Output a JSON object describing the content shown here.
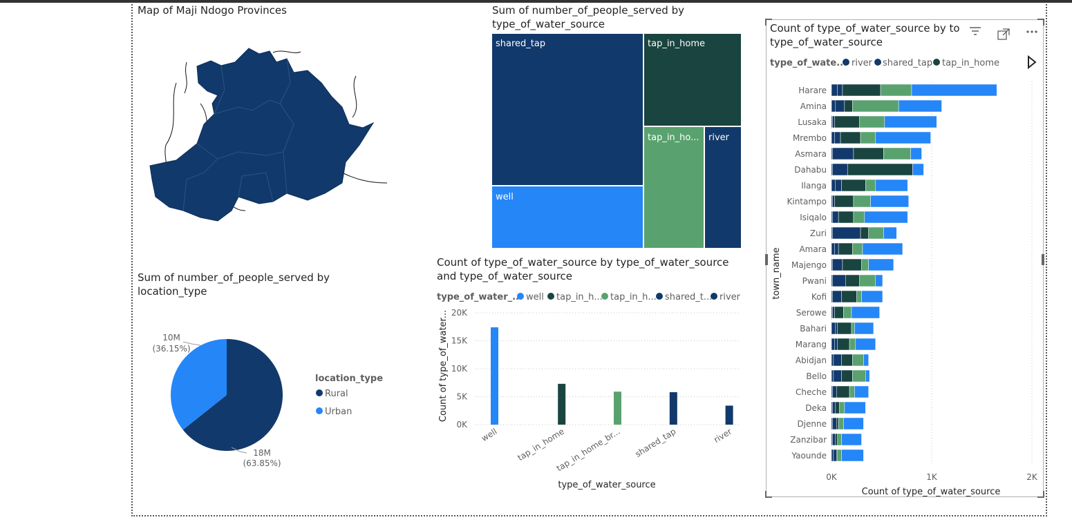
{
  "map": {
    "title": "Map of Maji Ndogo Provinces",
    "fill_color": "#12396b"
  },
  "treemap": {
    "title": "Sum of number_of_people_served by type_of_water_source",
    "tiles": [
      {
        "label": "shared_tap",
        "color": "#12396b"
      },
      {
        "label": "tap_in_home",
        "color": "#1a4440"
      },
      {
        "label": "tap_in_ho...",
        "color": "#59a26f"
      },
      {
        "label": "river",
        "color": "#12396b"
      },
      {
        "label": "well",
        "color": "#2586f7"
      }
    ]
  },
  "pie": {
    "title": "Sum of number_of_people_served by location_type",
    "legend_title": "location_type",
    "legend_items": [
      "Rural",
      "Urban"
    ],
    "labels": [
      {
        "value": "10M",
        "pct": "(36.15%)"
      },
      {
        "value": "18M",
        "pct": "(63.85%)"
      }
    ]
  },
  "column": {
    "title": "Count of type_of_water_source by type_of_water_source and type_of_water_source",
    "legend_title": "type_of_water_...",
    "legend_items": [
      "well",
      "tap_in_h...",
      "tap_in_h...",
      "shared_t...",
      "river"
    ],
    "y_axis_title": "Count of type_of_water...",
    "x_axis_title": "type_of_water_source",
    "y_ticks": [
      "20K",
      "15K",
      "10K",
      "5K",
      "0K"
    ],
    "x_tick_labels": [
      "well",
      "tap_in_home",
      "tap_in_home_br...",
      "shared_tap",
      "river"
    ]
  },
  "bar": {
    "title": "Count of type_of_water_source by to",
    "title_line2": "type_of_water_source",
    "legend_title": "type_of_wate...",
    "legend_items": [
      "river",
      "shared_tap",
      "tap_in_home"
    ],
    "y_axis_title": "town_name",
    "x_axis_title": "Count of type_of_water_source",
    "x_ticks": [
      "0K",
      "1K",
      "2K"
    ]
  },
  "colors": {
    "navy": "#12396b",
    "dark_green": "#1a4440",
    "green": "#59a26f",
    "blue": "#2586f7",
    "river": "#12396b"
  },
  "chart_data": [
    {
      "type": "treemap",
      "title": "Sum of number_of_people_served by type_of_water_source",
      "categories": [
        "shared_tap",
        "tap_in_home",
        "well",
        "tap_in_home_broken",
        "river"
      ],
      "values": [
        11.9,
        4.7,
        4.8,
        3.8,
        2.4
      ]
    },
    {
      "type": "pie",
      "title": "Sum of number_of_people_served by location_type",
      "categories": [
        "Rural",
        "Urban"
      ],
      "values": [
        18,
        10
      ],
      "percentages": [
        63.85,
        36.15
      ]
    },
    {
      "type": "bar",
      "title": "Count of type_of_water_source by type_of_water_source and type_of_water_source",
      "categories": [
        "well",
        "tap_in_home",
        "tap_in_home_broken",
        "shared_tap",
        "river"
      ],
      "values": [
        17400,
        7300,
        5900,
        5800,
        3400
      ],
      "xlabel": "type_of_water_source",
      "ylabel": "Count of type_of_water...",
      "ylim": [
        0,
        20000
      ]
    },
    {
      "type": "bar",
      "orientation": "horizontal",
      "stacked": true,
      "title": "Count of type_of_water_source by town_name and type_of_water_source",
      "xlabel": "Count of type_of_water_source",
      "ylabel": "town_name",
      "xlim": [
        0,
        2000
      ],
      "categories": [
        "Harare",
        "Amina",
        "Lusaka",
        "Mrembo",
        "Asmara",
        "Dahabu",
        "Ilanga",
        "Kintampo",
        "Isiqalo",
        "Zuri",
        "Amara",
        "Majengo",
        "Pwani",
        "Kofi",
        "Serowe",
        "Bahari",
        "Marang",
        "Abidjan",
        "Bello",
        "Cheche",
        "Deka",
        "Djenne",
        "Zanzibar",
        "Yaounde"
      ],
      "series": [
        {
          "name": "river",
          "values": [
            60,
            40,
            10,
            30,
            10,
            10,
            40,
            10,
            10,
            10,
            30,
            10,
            10,
            10,
            10,
            40,
            30,
            20,
            20,
            10,
            10,
            10,
            10,
            20
          ]
        },
        {
          "name": "shared_tap",
          "values": [
            50,
            90,
            20,
            60,
            210,
            150,
            60,
            20,
            60,
            280,
            40,
            100,
            130,
            90,
            20,
            20,
            30,
            80,
            80,
            40,
            30,
            40,
            30,
            30
          ]
        },
        {
          "name": "tap_in_home",
          "values": [
            380,
            80,
            250,
            200,
            300,
            650,
            240,
            190,
            150,
            80,
            140,
            190,
            140,
            150,
            90,
            140,
            120,
            110,
            110,
            130,
            40,
            20,
            20,
            10
          ]
        },
        {
          "name": "tap_in_home_broken",
          "values": [
            310,
            460,
            250,
            150,
            270,
            0,
            100,
            170,
            110,
            150,
            100,
            70,
            160,
            50,
            80,
            30,
            60,
            110,
            130,
            50,
            50,
            50,
            40,
            40
          ]
        },
        {
          "name": "well",
          "values": [
            850,
            430,
            520,
            550,
            110,
            110,
            320,
            380,
            430,
            130,
            400,
            250,
            70,
            210,
            280,
            190,
            200,
            50,
            40,
            140,
            210,
            200,
            200,
            220
          ]
        }
      ]
    }
  ]
}
